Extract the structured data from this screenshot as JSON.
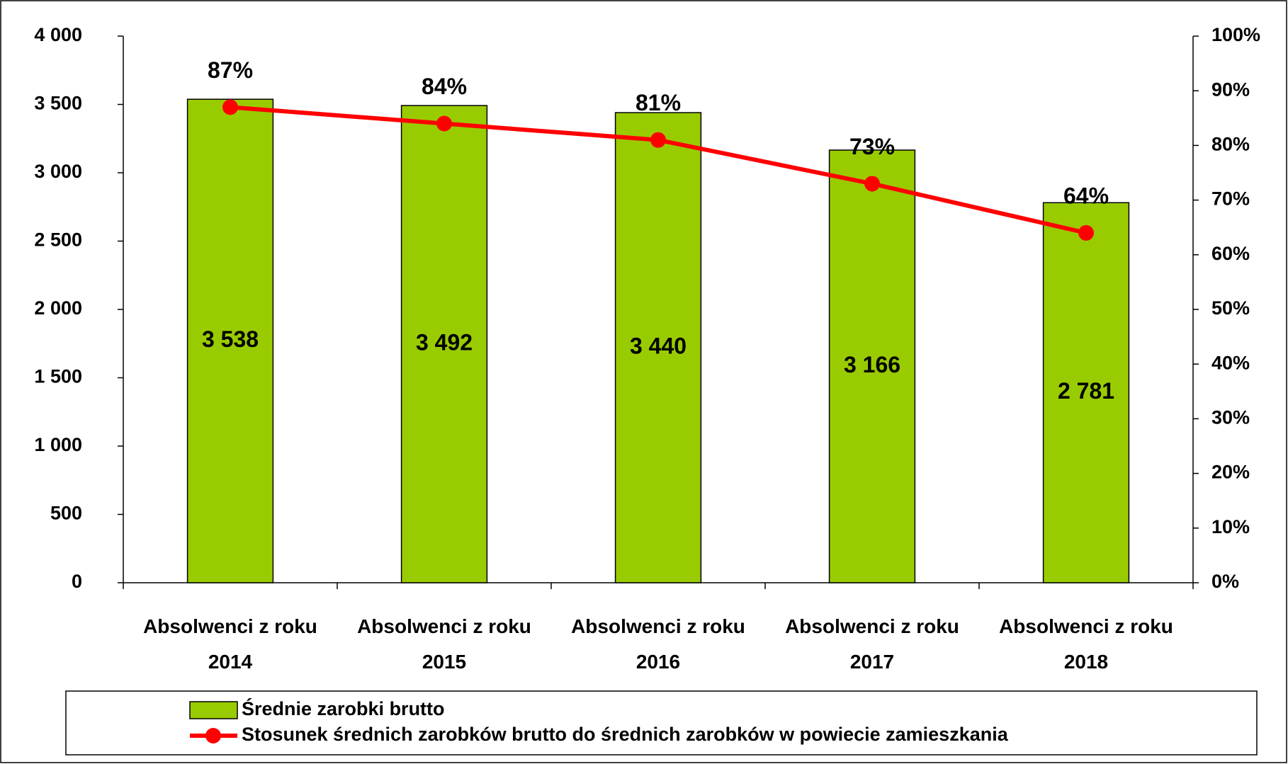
{
  "chart_data": {
    "type": "bar",
    "categories": [
      "Absolwenci z roku 2014",
      "Absolwenci z roku 2015",
      "Absolwenci z roku 2016",
      "Absolwenci z roku 2017",
      "Absolwenci z roku 2018"
    ],
    "series": [
      {
        "name": "Średnie zarobki brutto",
        "type": "bar",
        "color": "#99cc00",
        "values": [
          3538,
          3492,
          3440,
          3166,
          2781
        ],
        "value_labels": [
          "3 538",
          "3 492",
          "3 440",
          "3 166",
          "2 781"
        ]
      },
      {
        "name": "Stosunek średnich zarobków brutto do średnich zarobków w powiecie zamieszkania",
        "type": "line",
        "axis": "y2",
        "color": "#ff0000",
        "values": [
          87,
          84,
          81,
          73,
          64
        ],
        "value_labels": [
          "87%",
          "84%",
          "81%",
          "73%",
          "64%"
        ]
      }
    ],
    "ylim": [
      0,
      4000
    ],
    "yticks": [
      {
        "value": 0,
        "label": "0"
      },
      {
        "value": 500,
        "label": "500"
      },
      {
        "value": 1000,
        "label": "1 000"
      },
      {
        "value": 1500,
        "label": "1 500"
      },
      {
        "value": 2000,
        "label": "2 000"
      },
      {
        "value": 2500,
        "label": "2 500"
      },
      {
        "value": 3000,
        "label": "3 000"
      },
      {
        "value": 3500,
        "label": "3 500"
      },
      {
        "value": 4000,
        "label": "4 000"
      }
    ],
    "y2lim": [
      0,
      100
    ],
    "y2ticks": [
      {
        "value": 0,
        "label": "0%"
      },
      {
        "value": 10,
        "label": "10%"
      },
      {
        "value": 20,
        "label": "20%"
      },
      {
        "value": 30,
        "label": "30%"
      },
      {
        "value": 40,
        "label": "40%"
      },
      {
        "value": 50,
        "label": "50%"
      },
      {
        "value": 60,
        "label": "60%"
      },
      {
        "value": 70,
        "label": "70%"
      },
      {
        "value": 80,
        "label": "80%"
      },
      {
        "value": 90,
        "label": "90%"
      },
      {
        "value": 100,
        "label": "100%"
      }
    ],
    "legend": "bottom"
  }
}
